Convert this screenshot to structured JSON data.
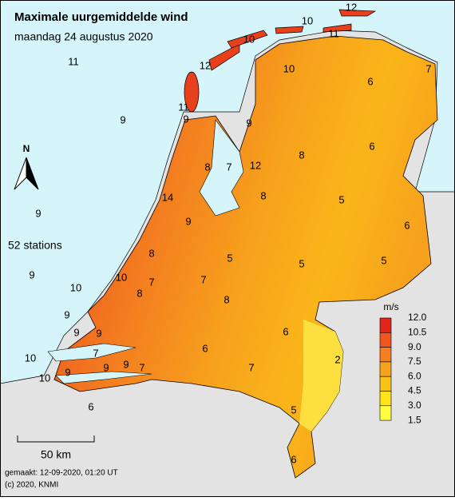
{
  "header": {
    "title": "Maximale uurgemiddelde wind",
    "subtitle": "maandag 24 augustus 2020"
  },
  "stations": [
    12,
    10,
    10,
    11,
    11,
    10,
    7,
    6,
    12,
    11,
    9,
    9,
    9,
    6,
    8,
    8,
    7,
    12,
    14,
    8,
    5,
    9,
    9,
    6,
    8,
    5,
    5,
    5,
    9,
    10,
    7,
    7,
    10,
    8,
    8,
    9,
    9,
    6,
    9,
    7,
    6,
    2,
    10,
    9,
    9,
    7,
    7,
    10,
    9,
    5,
    6,
    6
  ],
  "station_count": "52 stations",
  "north": "N",
  "scale_bar": "50 km",
  "legend": {
    "unit": "m/s",
    "ticks": [
      "12.0",
      "10.5",
      "9.0",
      "7.5",
      "6.0",
      "4.5",
      "3.0",
      "1.5"
    ],
    "colors": [
      "#e3241b",
      "#f0561d",
      "#f57e20",
      "#f7a21c",
      "#fac31a",
      "#fde31a",
      "#ffff40"
    ]
  },
  "footer": {
    "made": "gemaakt: 12-09-2020, 01:20 UT",
    "copyright": "(c) 2020, KNMI"
  }
}
